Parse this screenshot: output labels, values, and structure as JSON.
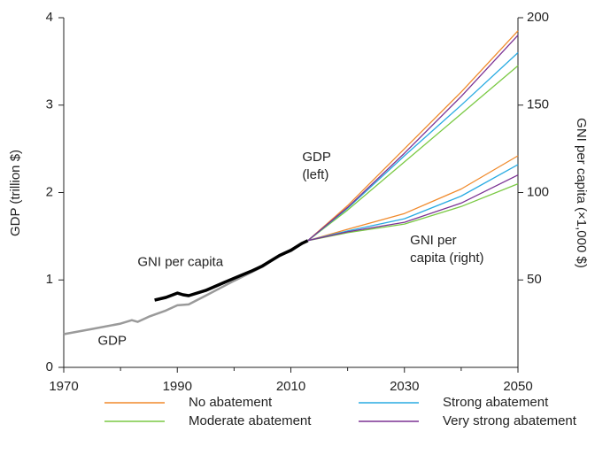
{
  "chart_data": {
    "type": "line",
    "y_label": "GDP (trillion $)",
    "y2_label": "GNI per capita (×1,000 $)",
    "xlim": [
      1970,
      2050
    ],
    "xticks": [
      1970,
      1990,
      2010,
      2030,
      2050
    ],
    "xminorticks": [
      1980,
      2000,
      2020,
      2040
    ],
    "ylim": [
      0,
      4
    ],
    "yticks": [
      0,
      1,
      2,
      3,
      4
    ],
    "y2lim": [
      0,
      200
    ],
    "y2ticks": [
      50,
      100,
      150,
      200
    ],
    "annotations": [
      {
        "lines": [
          "GDP",
          "(left)"
        ],
        "x": 2012,
        "y": 2.4
      },
      {
        "lines": [
          "GNI per",
          "capita (right)"
        ],
        "x": 2031,
        "y": 1.45
      },
      {
        "lines": [
          "GNI per capita"
        ],
        "x": 1983,
        "y": 1.2
      },
      {
        "lines": [
          "GDP"
        ],
        "x": 1976,
        "y": 0.3
      }
    ],
    "series": [
      {
        "name": "GDP",
        "color": "#9a9a9a",
        "axis": "y",
        "x": [
          1970,
          1975,
          1980,
          1982,
          1983,
          1985,
          1988,
          1990,
          1992,
          1995,
          2000,
          2005,
          2008,
          2010,
          2012,
          2013
        ],
        "values": [
          0.38,
          0.44,
          0.5,
          0.54,
          0.52,
          0.58,
          0.65,
          0.71,
          0.72,
          0.82,
          0.99,
          1.15,
          1.28,
          1.33,
          1.42,
          1.45
        ]
      },
      {
        "name": "GNI per capita",
        "color": "#000000",
        "axis": "y2",
        "x": [
          1986,
          1988,
          1990,
          1991,
          1992,
          1995,
          2000,
          2003,
          2005,
          2008,
          2010,
          2012,
          2013
        ],
        "values": [
          38.5,
          40,
          42.5,
          41.5,
          41,
          44,
          51,
          55,
          58,
          64,
          67,
          71,
          72.5
        ]
      },
      {
        "name": "No abatement",
        "color": "#f08a2c",
        "axis": "y",
        "x": [
          2013,
          2020,
          2030,
          2040,
          2050
        ],
        "values": [
          1.45,
          1.85,
          2.5,
          3.15,
          3.85
        ]
      },
      {
        "name": "Moderate abatement",
        "color": "#7ac943",
        "axis": "y",
        "x": [
          2013,
          2020,
          2030,
          2040,
          2050
        ],
        "values": [
          1.45,
          1.8,
          2.35,
          2.9,
          3.45
        ]
      },
      {
        "name": "Strong abatement",
        "color": "#29abe2",
        "axis": "y",
        "x": [
          2013,
          2020,
          2030,
          2040,
          2050
        ],
        "values": [
          1.45,
          1.82,
          2.42,
          3.0,
          3.6
        ]
      },
      {
        "name": "Very strong abatement",
        "color": "#7b3294",
        "axis": "y",
        "x": [
          2013,
          2020,
          2030,
          2040,
          2050
        ],
        "values": [
          1.45,
          1.83,
          2.45,
          3.1,
          3.8
        ]
      },
      {
        "name": "No abatement",
        "color": "#f08a2c",
        "axis": "y2",
        "x": [
          2013,
          2020,
          2030,
          2040,
          2050
        ],
        "values": [
          72.5,
          79,
          88,
          102,
          121
        ]
      },
      {
        "name": "Moderate abatement",
        "color": "#7ac943",
        "axis": "y2",
        "x": [
          2013,
          2020,
          2030,
          2040,
          2050
        ],
        "values": [
          72.5,
          77,
          82,
          92,
          105
        ]
      },
      {
        "name": "Strong abatement",
        "color": "#29abe2",
        "axis": "y2",
        "x": [
          2013,
          2020,
          2030,
          2040,
          2050
        ],
        "values": [
          72.5,
          78,
          85,
          98,
          116
        ]
      },
      {
        "name": "Very strong abatement",
        "color": "#7b3294",
        "axis": "y2",
        "x": [
          2013,
          2020,
          2030,
          2040,
          2050
        ],
        "values": [
          72.5,
          77.5,
          83,
          94,
          110
        ]
      }
    ],
    "legend": [
      2,
      4,
      3,
      5
    ]
  }
}
